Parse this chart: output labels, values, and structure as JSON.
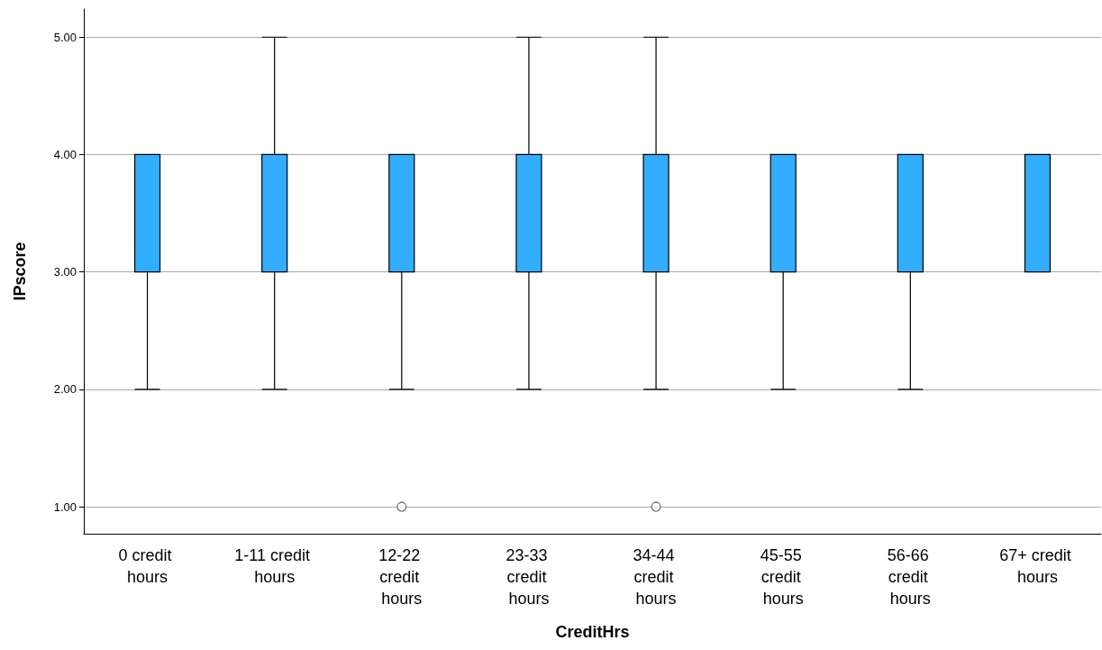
{
  "chart_data": {
    "type": "box",
    "xlabel": "CreditHrs",
    "ylabel": "IPscore",
    "categories": [
      "0 credit hours",
      "1-11 credit hours",
      "12-22 credit hours",
      "23-33 credit hours",
      "34-44 credit hours",
      "45-55 credit hours",
      "56-66 credit hours",
      "67+ credit hours"
    ],
    "boxes": [
      {
        "low": 2,
        "q1": 3,
        "median": 3,
        "q3": 4,
        "high": 4
      },
      {
        "low": 2,
        "q1": 3,
        "median": 3,
        "q3": 4,
        "high": 5
      },
      {
        "low": 2,
        "q1": 3,
        "median": 3,
        "q3": 4,
        "high": 4,
        "outliers": [
          1
        ]
      },
      {
        "low": 2,
        "q1": 3,
        "median": 3,
        "q3": 4,
        "high": 5
      },
      {
        "low": 2,
        "q1": 3,
        "median": 3,
        "q3": 4,
        "high": 5,
        "outliers": [
          1
        ]
      },
      {
        "low": 2,
        "q1": 3,
        "median": 3,
        "q3": 4,
        "high": 4
      },
      {
        "low": 2,
        "q1": 3,
        "median": 3,
        "q3": 4,
        "high": 4
      },
      {
        "low": 3,
        "q1": 3,
        "median": 3,
        "q3": 4,
        "high": 4
      }
    ],
    "color": "#33adff",
    "ylim": [
      0.77,
      5.24
    ],
    "yticks": [
      {
        "value": 1,
        "label": "1.00"
      },
      {
        "value": 2,
        "label": "2.00"
      },
      {
        "value": 3,
        "label": "3.00"
      },
      {
        "value": 4,
        "label": "4.00"
      },
      {
        "value": 5,
        "label": "5.00"
      }
    ],
    "grid": "y"
  }
}
